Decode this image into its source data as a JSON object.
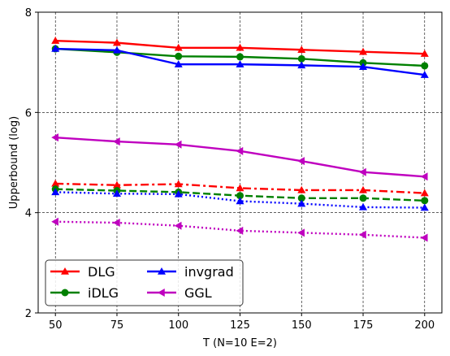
{
  "chart_data": {
    "type": "line",
    "xlabel": "T (N=10 E=2)",
    "ylabel": "Upperbound (log)",
    "x": [
      50,
      75,
      100,
      125,
      150,
      175,
      200
    ],
    "xlim": [
      43,
      207
    ],
    "ylim": [
      2,
      8
    ],
    "xticks": [
      "50",
      "75",
      "100",
      "125",
      "150",
      "175",
      "200"
    ],
    "yticks": [
      "2",
      "4",
      "6",
      "8"
    ],
    "grid": true,
    "legend_position": "lower-left",
    "legend": [
      {
        "name": "DLG",
        "color": "#ff0000",
        "marker": "triangle-up"
      },
      {
        "name": "iDLG",
        "color": "#008000",
        "marker": "circle"
      },
      {
        "name": "invgrad",
        "color": "#0000ff",
        "marker": "triangle-up"
      },
      {
        "name": "GGL",
        "color": "#bf00bf",
        "marker": "triangle-left"
      }
    ],
    "series": [
      {
        "name": "DLG",
        "group": "solid",
        "color": "#ff0000",
        "marker": "triangle-up",
        "dash": "solid",
        "values": [
          7.43,
          7.39,
          7.29,
          7.29,
          7.25,
          7.21,
          7.17
        ]
      },
      {
        "name": "iDLG",
        "group": "solid",
        "color": "#008000",
        "marker": "circle",
        "dash": "solid",
        "values": [
          7.27,
          7.2,
          7.12,
          7.11,
          7.07,
          6.99,
          6.93
        ]
      },
      {
        "name": "invgrad",
        "group": "solid",
        "color": "#0000ff",
        "marker": "triangle-up",
        "dash": "solid",
        "values": [
          7.27,
          7.24,
          6.96,
          6.96,
          6.94,
          6.91,
          6.75
        ]
      },
      {
        "name": "GGL",
        "group": "solid",
        "color": "#bf00bf",
        "marker": "triangle-left",
        "dash": "solid",
        "values": [
          5.5,
          5.42,
          5.36,
          5.23,
          5.03,
          4.81,
          4.72
        ]
      },
      {
        "group": "dashed",
        "color": "#ff0000",
        "marker": "triangle-up",
        "dash": "dashdot",
        "values": [
          4.58,
          4.55,
          4.57,
          4.49,
          4.45,
          4.45,
          4.39
        ]
      },
      {
        "group": "dashed",
        "color": "#008000",
        "marker": "circle",
        "dash": "dashed",
        "values": [
          4.47,
          4.44,
          4.41,
          4.34,
          4.29,
          4.29,
          4.24
        ]
      },
      {
        "group": "dotted",
        "color": "#0000ff",
        "marker": "triangle-up",
        "dash": "dotted",
        "values": [
          4.41,
          4.38,
          4.37,
          4.23,
          4.18,
          4.11,
          4.1
        ]
      },
      {
        "group": "dotted",
        "color": "#bf00bf",
        "marker": "triangle-left",
        "dash": "dotted",
        "values": [
          3.82,
          3.8,
          3.74,
          3.64,
          3.6,
          3.56,
          3.5
        ]
      }
    ]
  }
}
